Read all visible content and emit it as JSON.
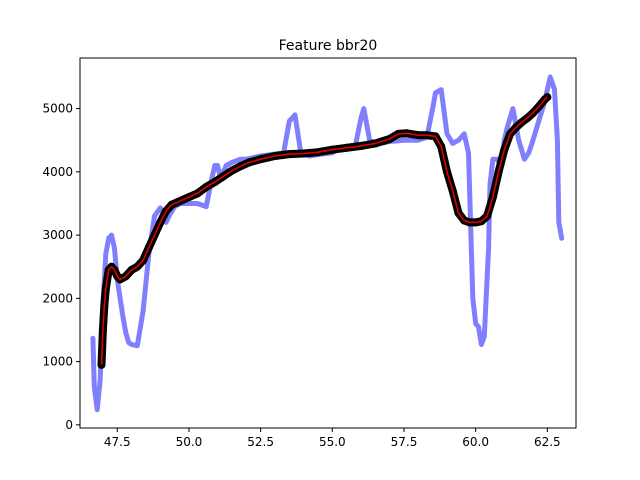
{
  "chart_data": {
    "type": "line",
    "title": "Feature bbr20",
    "xlabel": "",
    "ylabel": "",
    "xlim": [
      46.2,
      63.5
    ],
    "ylim": [
      -50,
      5800
    ],
    "xticks": [
      47.5,
      50.0,
      52.5,
      55.0,
      57.5,
      60.0,
      62.5
    ],
    "xtick_labels": [
      "47.5",
      "50.0",
      "52.5",
      "55.0",
      "57.5",
      "60.0",
      "62.5"
    ],
    "yticks": [
      0,
      1000,
      2000,
      3000,
      4000,
      5000
    ],
    "ytick_labels": [
      "0",
      "1000",
      "2000",
      "3000",
      "4000",
      "5000"
    ],
    "grid": false,
    "series": [
      {
        "style": "thick-line",
        "color": "#8080ff",
        "x": [
          46.65,
          46.7,
          46.8,
          46.9,
          47.0,
          47.1,
          47.2,
          47.3,
          47.4,
          47.5,
          47.6,
          47.7,
          47.8,
          47.9,
          48.0,
          48.2,
          48.4,
          48.6,
          48.8,
          49.0,
          49.1,
          49.2,
          49.3,
          49.5,
          49.7,
          50.0,
          50.3,
          50.6,
          50.8,
          50.9,
          51.0,
          51.1,
          51.3,
          51.5,
          51.8,
          52.0,
          52.5,
          53.0,
          53.3,
          53.5,
          53.7,
          53.9,
          54.2,
          54.6,
          55.0,
          55.3,
          55.6,
          55.8,
          56.0,
          56.1,
          56.3,
          56.5,
          56.8,
          57.0,
          57.5,
          58.0,
          58.3,
          58.5,
          58.6,
          58.8,
          59.0,
          59.2,
          59.4,
          59.6,
          59.75,
          59.9,
          60.0,
          60.1,
          60.2,
          60.3,
          60.45,
          60.5,
          60.6,
          60.75,
          60.9,
          61.0,
          61.1,
          61.3,
          61.5,
          61.7,
          61.85,
          62.0,
          62.2,
          62.4,
          62.6,
          62.75,
          62.85,
          62.9,
          63.0
        ],
        "y": [
          1370,
          600,
          240,
          700,
          1900,
          2700,
          2950,
          3000,
          2800,
          2300,
          2000,
          1700,
          1450,
          1300,
          1270,
          1250,
          1800,
          2700,
          3300,
          3430,
          3350,
          3200,
          3300,
          3450,
          3500,
          3500,
          3500,
          3450,
          3900,
          4100,
          4100,
          3900,
          4100,
          4150,
          4200,
          4200,
          4250,
          4280,
          4300,
          4800,
          4900,
          4300,
          4250,
          4280,
          4300,
          4380,
          4360,
          4400,
          4850,
          5000,
          4500,
          4450,
          4460,
          4480,
          4500,
          4500,
          4550,
          5000,
          5250,
          5300,
          4600,
          4450,
          4500,
          4600,
          4300,
          2000,
          1600,
          1550,
          1270,
          1400,
          2800,
          3800,
          4200,
          4200,
          4100,
          4500,
          4700,
          5000,
          4500,
          4200,
          4300,
          4500,
          4800,
          5100,
          5500,
          5300,
          4500,
          3200,
          2950
        ]
      },
      {
        "style": "dots",
        "color": "#000000",
        "x": [
          46.95,
          47.0,
          47.05,
          47.1,
          47.2,
          47.3,
          47.4,
          47.5,
          47.6,
          47.8,
          48.0,
          48.2,
          48.4,
          48.6,
          48.8,
          49.0,
          49.2,
          49.4,
          49.6,
          49.8,
          50.0,
          50.3,
          50.6,
          50.9,
          51.2,
          51.5,
          51.8,
          52.1,
          52.5,
          53.0,
          53.5,
          54.0,
          54.5,
          55.0,
          55.5,
          56.0,
          56.5,
          57.0,
          57.3,
          57.6,
          58.0,
          58.3,
          58.6,
          58.8,
          59.0,
          59.2,
          59.4,
          59.6,
          59.8,
          60.0,
          60.2,
          60.4,
          60.6,
          60.8,
          61.0,
          61.2,
          61.4,
          61.6,
          61.8,
          62.0,
          62.2,
          62.4,
          62.5
        ],
        "y": [
          950,
          1500,
          1900,
          2150,
          2450,
          2500,
          2450,
          2350,
          2300,
          2350,
          2450,
          2500,
          2600,
          2800,
          3000,
          3200,
          3380,
          3480,
          3520,
          3560,
          3600,
          3660,
          3760,
          3840,
          3930,
          4020,
          4090,
          4150,
          4200,
          4250,
          4280,
          4290,
          4310,
          4350,
          4380,
          4410,
          4450,
          4520,
          4600,
          4610,
          4580,
          4580,
          4560,
          4400,
          4000,
          3700,
          3350,
          3230,
          3200,
          3200,
          3220,
          3300,
          3600,
          4000,
          4350,
          4600,
          4700,
          4780,
          4850,
          4930,
          5030,
          5140,
          5180
        ]
      },
      {
        "style": "thin-line",
        "color": "#e00000",
        "x": [
          46.95,
          47.0,
          47.05,
          47.1,
          47.2,
          47.3,
          47.4,
          47.5,
          47.6,
          47.8,
          48.0,
          48.2,
          48.4,
          48.6,
          48.8,
          49.0,
          49.2,
          49.4,
          49.6,
          49.8,
          50.0,
          50.3,
          50.6,
          50.9,
          51.2,
          51.5,
          51.8,
          52.1,
          52.5,
          53.0,
          53.5,
          54.0,
          54.5,
          55.0,
          55.5,
          56.0,
          56.5,
          57.0,
          57.3,
          57.6,
          58.0,
          58.3,
          58.6,
          58.8,
          59.0,
          59.2,
          59.4,
          59.6,
          59.8,
          60.0,
          60.2,
          60.4,
          60.6,
          60.8,
          61.0,
          61.2,
          61.4,
          61.6,
          61.8,
          62.0,
          62.2,
          62.4,
          62.5
        ],
        "y": [
          950,
          1500,
          1900,
          2150,
          2450,
          2500,
          2450,
          2350,
          2300,
          2350,
          2450,
          2500,
          2600,
          2800,
          3000,
          3200,
          3380,
          3480,
          3520,
          3560,
          3600,
          3660,
          3760,
          3840,
          3930,
          4020,
          4090,
          4150,
          4200,
          4250,
          4280,
          4290,
          4310,
          4350,
          4380,
          4410,
          4450,
          4520,
          4600,
          4610,
          4580,
          4580,
          4560,
          4400,
          4000,
          3700,
          3350,
          3230,
          3200,
          3200,
          3220,
          3300,
          3600,
          4000,
          4350,
          4600,
          4700,
          4780,
          4850,
          4930,
          5030,
          5140,
          5180
        ]
      }
    ]
  }
}
